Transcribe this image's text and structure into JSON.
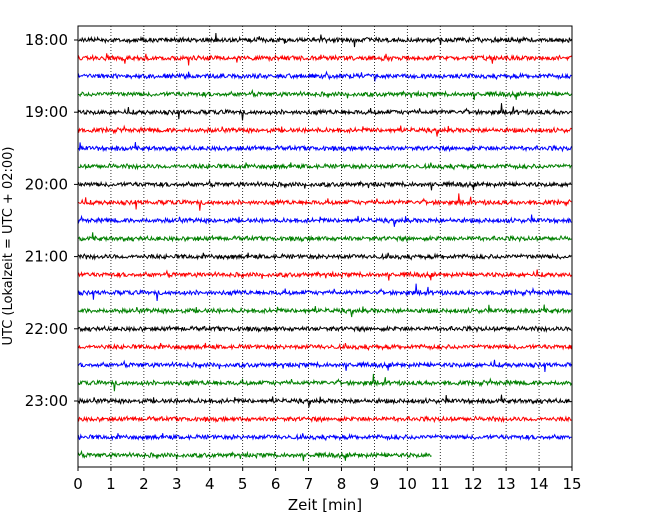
{
  "chart_data": {
    "type": "line",
    "title": "",
    "xlabel": "Zeit  [min]",
    "ylabel": "UTC (Lokalzeit = UTC + 02:00)",
    "xlim": [
      0,
      15
    ],
    "x_ticks": [
      "0",
      "1",
      "2",
      "3",
      "4",
      "5",
      "6",
      "7",
      "8",
      "9",
      "10",
      "11",
      "12",
      "13",
      "14",
      "15"
    ],
    "y_ticks": [
      "18:00",
      "19:00",
      "20:00",
      "21:00",
      "22:00",
      "23:00"
    ],
    "row_interval_min": 15,
    "row_start": "18:00",
    "row_colors": [
      "#000000",
      "#ff0000",
      "#0000ff",
      "#008000"
    ],
    "vertical_grid": "dotted",
    "series": [
      {
        "start": "18:00",
        "end_min": 15
      },
      {
        "start": "18:15",
        "end_min": 15
      },
      {
        "start": "18:30",
        "end_min": 15
      },
      {
        "start": "18:45",
        "end_min": 15
      },
      {
        "start": "19:00",
        "end_min": 15
      },
      {
        "start": "19:15",
        "end_min": 15
      },
      {
        "start": "19:30",
        "end_min": 15
      },
      {
        "start": "19:45",
        "end_min": 15
      },
      {
        "start": "20:00",
        "end_min": 15
      },
      {
        "start": "20:15",
        "end_min": 15
      },
      {
        "start": "20:30",
        "end_min": 15
      },
      {
        "start": "20:45",
        "end_min": 15
      },
      {
        "start": "21:00",
        "end_min": 15
      },
      {
        "start": "21:15",
        "end_min": 15
      },
      {
        "start": "21:30",
        "end_min": 15
      },
      {
        "start": "21:45",
        "end_min": 15
      },
      {
        "start": "22:00",
        "end_min": 15
      },
      {
        "start": "22:15",
        "end_min": 15
      },
      {
        "start": "22:30",
        "end_min": 15
      },
      {
        "start": "22:45",
        "end_min": 15
      },
      {
        "start": "23:00",
        "end_min": 15
      },
      {
        "start": "23:15",
        "end_min": 15
      },
      {
        "start": "23:30",
        "end_min": 15
      },
      {
        "start": "23:45",
        "end_min": 10.75
      }
    ]
  }
}
